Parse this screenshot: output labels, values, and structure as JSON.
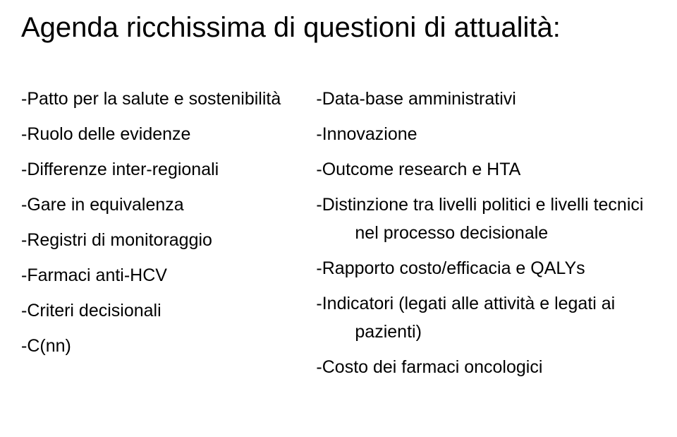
{
  "title": "Agenda ricchissima di questioni di attualità:",
  "left": {
    "i0": "-Patto per la salute e sostenibilità",
    "i1": "-Ruolo delle evidenze",
    "i2": "-Differenze inter-regionali",
    "i3": "-Gare in equivalenza",
    "i4": "-Registri di monitoraggio",
    "i5": "-Farmaci anti-HCV",
    "i6": "-Criteri decisionali",
    "i7": "-C(nn)"
  },
  "right": {
    "i0": "-Data-base amministrativi",
    "i1": "-Innovazione",
    "i2": "-Outcome research e HTA",
    "i3": "-Distinzione tra livelli politici e livelli tecnici nel processo decisionale",
    "i4": "-Rapporto costo/efficacia e QALYs",
    "i5": "-Indicatori (legati alle attività e legati ai pazienti)",
    "i6": "-Costo dei farmaci oncologici"
  }
}
